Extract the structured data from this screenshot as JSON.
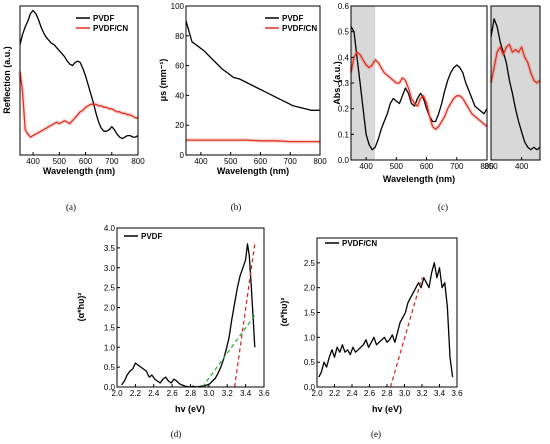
{
  "figure": {
    "panel_labels": [
      "(a)",
      "(b)",
      "(c)",
      "(d)",
      "(e)"
    ]
  },
  "chart_data": [
    {
      "id": "a",
      "type": "line",
      "xlabel": "Wavelength (nm)",
      "ylabel": "Reflection (a.u.)",
      "xlim": [
        350,
        800
      ],
      "xticks": [
        400,
        500,
        600,
        700,
        800
      ],
      "ylim": [
        0,
        1
      ],
      "yticks": [],
      "legend_placement": "top-right",
      "series": [
        {
          "name": "PVDF",
          "color": "#000000",
          "x": [
            350,
            360,
            370,
            380,
            390,
            400,
            410,
            420,
            430,
            440,
            450,
            460,
            470,
            480,
            490,
            500,
            510,
            520,
            530,
            540,
            550,
            560,
            570,
            580,
            590,
            600,
            610,
            620,
            630,
            640,
            650,
            660,
            670,
            680,
            690,
            700,
            710,
            720,
            730,
            740,
            750,
            760,
            770,
            780,
            790,
            800
          ],
          "y": [
            0.74,
            0.81,
            0.86,
            0.9,
            0.95,
            0.97,
            0.95,
            0.91,
            0.86,
            0.82,
            0.79,
            0.77,
            0.75,
            0.74,
            0.72,
            0.7,
            0.68,
            0.66,
            0.63,
            0.61,
            0.6,
            0.62,
            0.63,
            0.62,
            0.58,
            0.53,
            0.47,
            0.41,
            0.35,
            0.28,
            0.22,
            0.18,
            0.16,
            0.16,
            0.17,
            0.19,
            0.17,
            0.14,
            0.12,
            0.11,
            0.12,
            0.13,
            0.13,
            0.12,
            0.12,
            0.13
          ]
        },
        {
          "name": "PVDF/CN",
          "color": "#e03020",
          "x": [
            350,
            360,
            370,
            380,
            390,
            400,
            410,
            420,
            430,
            440,
            450,
            460,
            470,
            480,
            490,
            500,
            510,
            520,
            530,
            540,
            550,
            560,
            570,
            580,
            590,
            600,
            610,
            620,
            630,
            640,
            650,
            660,
            670,
            680,
            690,
            700,
            710,
            720,
            730,
            740,
            750,
            760,
            770,
            780,
            790,
            800
          ],
          "y": [
            0.56,
            0.42,
            0.17,
            0.14,
            0.12,
            0.13,
            0.14,
            0.15,
            0.16,
            0.17,
            0.18,
            0.19,
            0.2,
            0.21,
            0.22,
            0.21,
            0.22,
            0.23,
            0.22,
            0.21,
            0.23,
            0.25,
            0.27,
            0.29,
            0.3,
            0.32,
            0.33,
            0.34,
            0.34,
            0.34,
            0.33,
            0.33,
            0.32,
            0.32,
            0.31,
            0.31,
            0.3,
            0.29,
            0.29,
            0.28,
            0.28,
            0.27,
            0.27,
            0.26,
            0.25,
            0.25
          ]
        }
      ]
    },
    {
      "id": "b",
      "type": "line",
      "xlabel": "Wavelength (nm)",
      "ylabel": "μs (mm⁻¹)",
      "xlim": [
        350,
        800
      ],
      "xticks": [
        400,
        500,
        600,
        700,
        800
      ],
      "ylim": [
        0,
        100
      ],
      "yticks": [
        0,
        20,
        40,
        60,
        80,
        100
      ],
      "legend_placement": "top-right",
      "series": [
        {
          "name": "PVDF",
          "color": "#000000",
          "x": [
            350,
            370,
            390,
            410,
            430,
            450,
            470,
            490,
            510,
            530,
            550,
            570,
            590,
            610,
            630,
            650,
            670,
            690,
            710,
            730,
            750,
            770,
            790,
            800
          ],
          "y": [
            90,
            76,
            73,
            70,
            66,
            62,
            58,
            55,
            52,
            51,
            49,
            47,
            45,
            43,
            41,
            39,
            37,
            35,
            33,
            32,
            31,
            30,
            30,
            30
          ]
        },
        {
          "name": "PVDF/CN",
          "color": "#e03020",
          "x": [
            350,
            400,
            450,
            500,
            550,
            600,
            650,
            700,
            750,
            800
          ],
          "y": [
            10,
            10,
            10,
            10,
            10,
            9.5,
            9.5,
            9,
            9,
            9
          ]
        }
      ]
    },
    {
      "id": "c",
      "type": "line",
      "xlabel": "Wavelength (nm)",
      "ylabel": "Abs. (a.u.)",
      "xlim": [
        350,
        800
      ],
      "xticks": [
        400,
        500,
        600,
        700,
        800
      ],
      "ylim": [
        0,
        0.6
      ],
      "yticks": [
        0.0,
        0.1,
        0.2,
        0.3,
        0.4,
        0.5,
        0.6
      ],
      "highlight_range": [
        350,
        430
      ],
      "series": [
        {
          "name": "PVDF",
          "color": "#000000",
          "x": [
            350,
            360,
            370,
            380,
            390,
            400,
            410,
            420,
            430,
            440,
            450,
            460,
            470,
            480,
            490,
            500,
            510,
            520,
            530,
            540,
            550,
            560,
            570,
            580,
            590,
            600,
            610,
            620,
            630,
            640,
            650,
            660,
            670,
            680,
            690,
            700,
            710,
            720,
            730,
            740,
            750,
            760,
            770,
            780,
            790,
            800
          ],
          "y": [
            0.52,
            0.5,
            0.4,
            0.3,
            0.2,
            0.1,
            0.06,
            0.04,
            0.05,
            0.08,
            0.12,
            0.15,
            0.18,
            0.22,
            0.24,
            0.23,
            0.22,
            0.25,
            0.28,
            0.26,
            0.22,
            0.21,
            0.24,
            0.26,
            0.24,
            0.2,
            0.17,
            0.15,
            0.15,
            0.18,
            0.22,
            0.27,
            0.31,
            0.34,
            0.36,
            0.37,
            0.36,
            0.34,
            0.3,
            0.27,
            0.24,
            0.21,
            0.2,
            0.19,
            0.18,
            0.2
          ]
        },
        {
          "name": "PVDF/CN",
          "color": "#e03020",
          "x": [
            350,
            360,
            370,
            380,
            390,
            400,
            410,
            420,
            430,
            440,
            450,
            460,
            470,
            480,
            490,
            500,
            510,
            520,
            530,
            540,
            550,
            560,
            570,
            580,
            590,
            600,
            610,
            620,
            630,
            640,
            650,
            660,
            670,
            680,
            690,
            700,
            710,
            720,
            730,
            740,
            750,
            760,
            770,
            780,
            790,
            800
          ],
          "y": [
            0.34,
            0.4,
            0.42,
            0.41,
            0.39,
            0.37,
            0.36,
            0.37,
            0.39,
            0.38,
            0.36,
            0.34,
            0.33,
            0.32,
            0.31,
            0.3,
            0.3,
            0.32,
            0.31,
            0.28,
            0.24,
            0.22,
            0.21,
            0.24,
            0.25,
            0.22,
            0.17,
            0.13,
            0.12,
            0.13,
            0.15,
            0.17,
            0.2,
            0.22,
            0.24,
            0.25,
            0.25,
            0.24,
            0.22,
            0.2,
            0.18,
            0.17,
            0.16,
            0.15,
            0.14,
            0.13
          ]
        }
      ]
    },
    {
      "id": "c-inset",
      "type": "line",
      "xlabel": "",
      "ylabel": "",
      "xlim": [
        350,
        430
      ],
      "xticks": [
        350,
        400
      ],
      "ylim": [
        0,
        0.6
      ],
      "yticks": [],
      "series": [
        {
          "name": "PVDF",
          "color": "#000000",
          "x": [
            350,
            355,
            360,
            365,
            370,
            375,
            380,
            385,
            390,
            395,
            400,
            405,
            410,
            415,
            420,
            425,
            430
          ],
          "y": [
            0.48,
            0.55,
            0.52,
            0.46,
            0.42,
            0.38,
            0.31,
            0.26,
            0.2,
            0.15,
            0.11,
            0.07,
            0.05,
            0.04,
            0.05,
            0.04,
            0.05
          ]
        },
        {
          "name": "PVDF/CN",
          "color": "#e03020",
          "x": [
            350,
            355,
            360,
            365,
            370,
            375,
            380,
            385,
            390,
            395,
            400,
            405,
            410,
            415,
            420,
            425,
            430
          ],
          "y": [
            0.3,
            0.36,
            0.42,
            0.44,
            0.41,
            0.44,
            0.45,
            0.42,
            0.43,
            0.42,
            0.44,
            0.4,
            0.38,
            0.34,
            0.31,
            0.3,
            0.31
          ]
        }
      ]
    },
    {
      "id": "d",
      "type": "line",
      "xlabel": "hv (eV)",
      "ylabel": "(α*hυ)²",
      "xlim": [
        2.0,
        3.6
      ],
      "xticks": [
        2.0,
        2.2,
        2.4,
        2.6,
        2.8,
        3.0,
        3.2,
        3.4,
        3.6
      ],
      "xtick_labels": [
        "2.0",
        "2.2",
        "2.4",
        "2.6",
        "2.8",
        "3.0",
        "3.2",
        "3.4",
        "3.6"
      ],
      "ylim": [
        0,
        4.0
      ],
      "yticks": [
        0,
        0.5,
        1.0,
        1.5,
        2.0,
        2.5,
        3.0,
        3.5,
        4.0
      ],
      "ytick_labels": [
        "0.0",
        "0.5",
        "1.0",
        "1.5",
        "2.0",
        "2.5",
        "3.0",
        "3.5",
        "4.0"
      ],
      "legend_placement": "top-left",
      "series": [
        {
          "name": "PVDF",
          "color": "#000000",
          "x": [
            2.05,
            2.08,
            2.11,
            2.14,
            2.17,
            2.2,
            2.23,
            2.26,
            2.29,
            2.32,
            2.35,
            2.38,
            2.41,
            2.44,
            2.47,
            2.5,
            2.53,
            2.56,
            2.59,
            2.62,
            2.65,
            2.68,
            2.71,
            2.74,
            2.77,
            2.8,
            2.83,
            2.86,
            2.89,
            2.92,
            2.95,
            2.98,
            3.01,
            3.04,
            3.07,
            3.1,
            3.13,
            3.16,
            3.19,
            3.22,
            3.25,
            3.28,
            3.31,
            3.34,
            3.37,
            3.4,
            3.42,
            3.44,
            3.46,
            3.48,
            3.5
          ],
          "y": [
            0.05,
            0.15,
            0.3,
            0.4,
            0.45,
            0.6,
            0.55,
            0.5,
            0.45,
            0.4,
            0.25,
            0.3,
            0.2,
            0.15,
            0.1,
            0.2,
            0.25,
            0.15,
            0.1,
            0.2,
            0.15,
            0.08,
            0.05,
            0.02,
            0.01,
            0.0,
            0.02,
            0.0,
            0.01,
            0.02,
            0.03,
            0.05,
            0.08,
            0.15,
            0.22,
            0.35,
            0.5,
            0.7,
            0.95,
            1.25,
            1.7,
            2.1,
            2.5,
            2.8,
            3.0,
            3.2,
            3.6,
            3.3,
            2.6,
            1.8,
            1.0
          ]
        }
      ],
      "fits": [
        {
          "color": "#20b030",
          "x": [
            2.93,
            3.5
          ],
          "y": [
            0.0,
            1.8
          ]
        },
        {
          "color": "#d02020",
          "x": [
            3.28,
            3.5
          ],
          "y": [
            0.0,
            3.6
          ]
        }
      ]
    },
    {
      "id": "e",
      "type": "line",
      "xlabel": "hv (eV)",
      "ylabel": "(α*hυ)²",
      "xlim": [
        2.0,
        3.6
      ],
      "xticks": [
        2.0,
        2.2,
        2.4,
        2.6,
        2.8,
        3.0,
        3.2,
        3.4,
        3.6
      ],
      "xtick_labels": [
        "2.0",
        "2.2",
        "2.4",
        "2.6",
        "2.8",
        "3.0",
        "3.2",
        "3.4",
        "3.6"
      ],
      "ylim": [
        0,
        3.0
      ],
      "yticks": [
        0,
        0.5,
        1.0,
        1.5,
        2.0,
        2.5
      ],
      "ytick_labels": [
        "0.0",
        "0.5",
        "1.0",
        "1.5",
        "2.0",
        "2.5"
      ],
      "legend_placement": "top-left",
      "series": [
        {
          "name": "PVDF/CN",
          "color": "#000000",
          "x": [
            2.02,
            2.05,
            2.08,
            2.11,
            2.14,
            2.17,
            2.2,
            2.23,
            2.26,
            2.29,
            2.32,
            2.35,
            2.38,
            2.41,
            2.44,
            2.47,
            2.5,
            2.53,
            2.56,
            2.59,
            2.62,
            2.65,
            2.68,
            2.71,
            2.74,
            2.77,
            2.8,
            2.83,
            2.86,
            2.89,
            2.92,
            2.95,
            2.98,
            3.01,
            3.04,
            3.07,
            3.1,
            3.13,
            3.16,
            3.19,
            3.22,
            3.25,
            3.28,
            3.31,
            3.34,
            3.37,
            3.4,
            3.43,
            3.46,
            3.49,
            3.52,
            3.55
          ],
          "y": [
            0.2,
            0.3,
            0.5,
            0.4,
            0.6,
            0.75,
            0.6,
            0.8,
            0.7,
            0.85,
            0.7,
            0.75,
            0.65,
            0.8,
            0.7,
            0.75,
            0.8,
            0.85,
            0.95,
            0.8,
            0.9,
            1.0,
            0.85,
            0.9,
            0.95,
            1.0,
            0.9,
            0.95,
            1.05,
            0.9,
            1.1,
            1.3,
            1.4,
            1.5,
            1.7,
            1.8,
            1.9,
            2.0,
            2.1,
            2.0,
            2.2,
            2.1,
            2.0,
            2.3,
            2.5,
            2.2,
            2.4,
            2.0,
            2.1,
            1.6,
            0.6,
            0.2
          ]
        }
      ],
      "fits": [
        {
          "color": "#d02020",
          "x": [
            2.84,
            3.2
          ],
          "y": [
            0.0,
            2.2
          ]
        }
      ]
    }
  ]
}
